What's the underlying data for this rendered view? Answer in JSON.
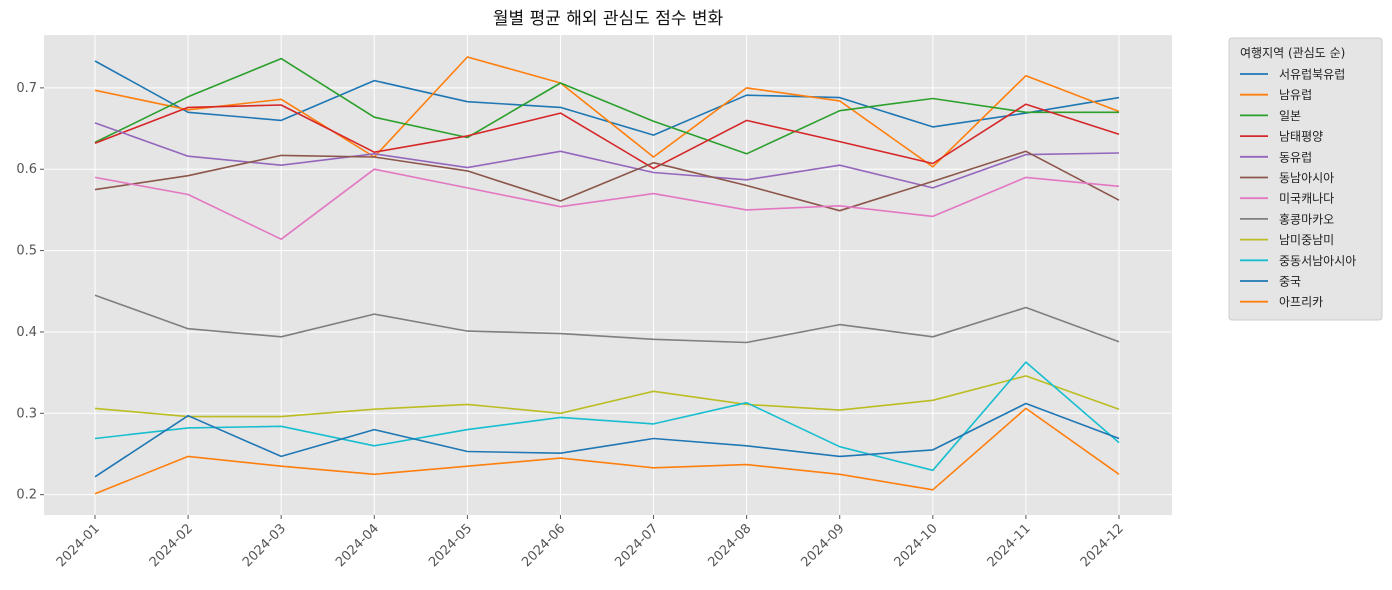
{
  "chart_data": {
    "type": "line",
    "title": "월별 평균 해외 관심도 점수 변화",
    "xlabel": "",
    "ylabel": "",
    "categories": [
      "2024-01",
      "2024-02",
      "2024-03",
      "2024-04",
      "2024-05",
      "2024-06",
      "2024-07",
      "2024-08",
      "2024-09",
      "2024-10",
      "2024-11",
      "2024-12"
    ],
    "ylim": [
      0.175,
      0.765
    ],
    "yticks": [
      0.2,
      0.3,
      0.4,
      0.5,
      0.6,
      0.7
    ],
    "grid": true,
    "legend_title": "여행지역 (관심도 순)",
    "legend_position": "outside-top-right",
    "series": [
      {
        "name": "서유럽북유럽",
        "color": "#1f77b4",
        "values": [
          0.733,
          0.67,
          0.66,
          0.709,
          0.683,
          0.676,
          0.642,
          0.691,
          0.688,
          0.652,
          0.669,
          0.688
        ]
      },
      {
        "name": "남유럽",
        "color": "#ff7f0e",
        "values": [
          0.697,
          0.673,
          0.686,
          0.615,
          0.738,
          0.706,
          0.615,
          0.7,
          0.684,
          0.603,
          0.715,
          0.671
        ]
      },
      {
        "name": "일본",
        "color": "#2ca02c",
        "values": [
          0.633,
          0.689,
          0.736,
          0.664,
          0.639,
          0.706,
          0.659,
          0.619,
          0.672,
          0.687,
          0.67,
          0.67
        ]
      },
      {
        "name": "남태평양",
        "color": "#d62728",
        "values": [
          0.632,
          0.676,
          0.679,
          0.621,
          0.641,
          0.669,
          0.601,
          0.66,
          0.634,
          0.607,
          0.68,
          0.643
        ]
      },
      {
        "name": "동유럽",
        "color": "#9467bd",
        "values": [
          0.657,
          0.616,
          0.605,
          0.619,
          0.602,
          0.622,
          0.596,
          0.587,
          0.605,
          0.577,
          0.618,
          0.62
        ]
      },
      {
        "name": "동남아시아",
        "color": "#8c564b",
        "values": [
          0.575,
          0.592,
          0.617,
          0.615,
          0.598,
          0.561,
          0.608,
          0.58,
          0.549,
          0.585,
          0.622,
          0.562
        ]
      },
      {
        "name": "미국캐나다",
        "color": "#e377c2",
        "values": [
          0.59,
          0.569,
          0.514,
          0.6,
          0.577,
          0.554,
          0.57,
          0.55,
          0.555,
          0.542,
          0.59,
          0.579
        ]
      },
      {
        "name": "홍콩마카오",
        "color": "#7f7f7f",
        "values": [
          0.445,
          0.404,
          0.394,
          0.422,
          0.401,
          0.398,
          0.391,
          0.387,
          0.409,
          0.394,
          0.43,
          0.388
        ]
      },
      {
        "name": "남미중남미",
        "color": "#bcbd22",
        "values": [
          0.306,
          0.296,
          0.296,
          0.305,
          0.311,
          0.3,
          0.327,
          0.311,
          0.304,
          0.316,
          0.346,
          0.305
        ]
      },
      {
        "name": "중동서남아시아",
        "color": "#17becf",
        "values": [
          0.269,
          0.282,
          0.284,
          0.26,
          0.28,
          0.295,
          0.287,
          0.313,
          0.259,
          0.23,
          0.363,
          0.264
        ]
      },
      {
        "name": "중국",
        "color": "#1f77b4",
        "values": [
          0.222,
          0.297,
          0.247,
          0.28,
          0.253,
          0.251,
          0.269,
          0.26,
          0.247,
          0.255,
          0.312,
          0.269
        ]
      },
      {
        "name": "아프리카",
        "color": "#ff7f0e",
        "values": [
          0.201,
          0.247,
          0.235,
          0.225,
          0.235,
          0.245,
          0.233,
          0.237,
          0.225,
          0.206,
          0.306,
          0.225
        ]
      }
    ]
  }
}
